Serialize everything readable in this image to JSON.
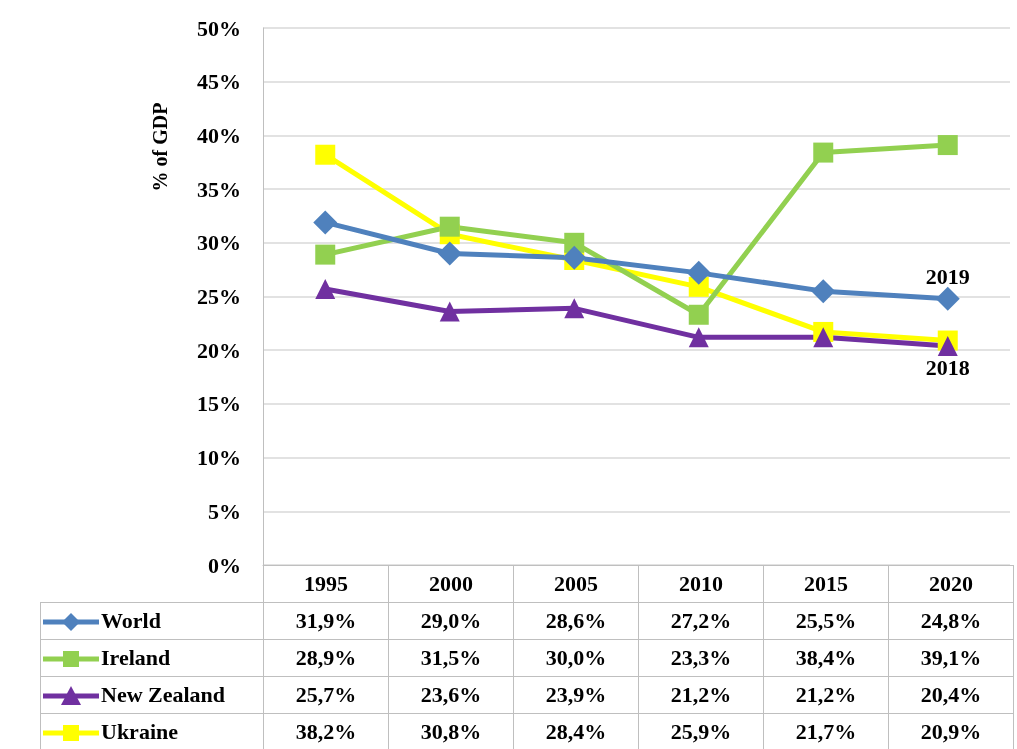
{
  "chart_data": {
    "type": "line",
    "ylabel": "% of GDP",
    "categories": [
      "1995",
      "2000",
      "2005",
      "2010",
      "2015",
      "2020"
    ],
    "series": [
      {
        "name": "World",
        "color": "#4f81bd",
        "marker": "diamond",
        "values": [
          31.9,
          29.0,
          28.6,
          27.2,
          25.5,
          24.8
        ],
        "value_labels": [
          "31,9%",
          "29,0%",
          "28,6%",
          "27,2%",
          "25,5%",
          "24,8%"
        ]
      },
      {
        "name": "Ireland",
        "color": "#92d050",
        "marker": "square",
        "values": [
          28.9,
          31.5,
          30.0,
          23.3,
          38.4,
          39.1
        ],
        "value_labels": [
          "28,9%",
          "31,5%",
          "30,0%",
          "23,3%",
          "38,4%",
          "39,1%"
        ]
      },
      {
        "name": "New Zealand",
        "color": "#7030a0",
        "marker": "triangle",
        "values": [
          25.7,
          23.6,
          23.9,
          21.2,
          21.2,
          20.4
        ],
        "value_labels": [
          "25,7%",
          "23,6%",
          "23,9%",
          "21,2%",
          "21,2%",
          "20,4%"
        ]
      },
      {
        "name": "Ukraine",
        "color": "#ffff00",
        "marker": "square",
        "values": [
          38.2,
          30.8,
          28.4,
          25.9,
          21.7,
          20.9
        ],
        "value_labels": [
          "38,2%",
          "30,8%",
          "28,4%",
          "25,9%",
          "21,7%",
          "20,9%"
        ]
      }
    ],
    "ylim": [
      0,
      50
    ],
    "yticks": [
      {
        "value": 0,
        "label": "0%"
      },
      {
        "value": 5,
        "label": "5%"
      },
      {
        "value": 10,
        "label": "10%"
      },
      {
        "value": 15,
        "label": "15%"
      },
      {
        "value": 20,
        "label": "20%"
      },
      {
        "value": 25,
        "label": "25%"
      },
      {
        "value": 30,
        "label": "30%"
      },
      {
        "value": 35,
        "label": "35%"
      },
      {
        "value": 40,
        "label": "40%"
      },
      {
        "value": 45,
        "label": "45%"
      },
      {
        "value": 50,
        "label": "50%"
      }
    ],
    "grid": "y",
    "legend": "bottom",
    "line_style": "solid",
    "annotations": [
      {
        "text": "2019",
        "x": "2020",
        "y": 24.8
      },
      {
        "text": "2018",
        "x": "2020",
        "y": 20.4
      }
    ]
  }
}
